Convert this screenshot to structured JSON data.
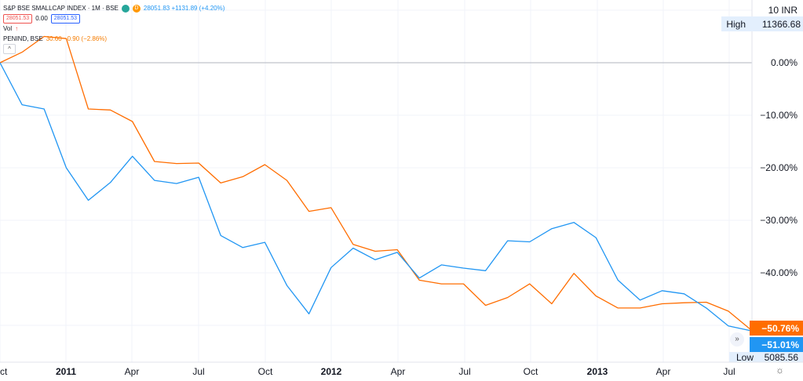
{
  "legend": {
    "title": "S&P BSE SMALLCAP INDEX · 1M · BSE",
    "badge1": "D",
    "change": "28051.83 +1131.89 (+4.20%)",
    "bid": "28051.53",
    "spread": "0.00",
    "ask": "28051.53",
    "vol_label": "Vol",
    "vol_icon": "arrow-up-icon",
    "compare": "PENIND, BSE",
    "compare_change": "30.60 −0.90 (−2.86%)",
    "collapse_icon": "chevron-up-icon"
  },
  "header_right": {
    "currency": "10 INR",
    "high_label": "High",
    "high_value": "11366.68",
    "low_label": "Low",
    "low_value": "5085.56"
  },
  "colors": {
    "blue": "#2196f3",
    "orange": "#ff6d00",
    "grid": "#f0f3fa",
    "zero_line": "#b2b5be"
  },
  "chart_data": {
    "type": "line",
    "x_labels": [
      "Oct",
      "2011",
      "Apr",
      "Jul",
      "Oct",
      "2012",
      "Apr",
      "Jul",
      "Oct",
      "2013",
      "Apr",
      "Jul"
    ],
    "y_ticks": [
      "0.00%",
      "−10.00%",
      "−20.00%",
      "−30.00%",
      "−40.00%"
    ],
    "ylim": [
      -56,
      12
    ],
    "series": [
      {
        "name": "S&P BSE SMALLCAP INDEX",
        "color": "#2196f3",
        "last_label": "−51.01%",
        "values": [
          0,
          -8,
          -8.8,
          -20,
          -26.2,
          -22.8,
          -17.8,
          -22.4,
          -23,
          -21.8,
          -32.9,
          -35.2,
          -34.2,
          -42.4,
          -47.8,
          -39,
          -35.3,
          -37.5,
          -36.1,
          -41,
          -38.5,
          -39.1,
          -39.6,
          -33.9,
          -34.1,
          -31.6,
          -30.4,
          -33.3,
          -41.4,
          -45.2,
          -43.4,
          -44,
          -46.7,
          -50.1,
          -51.01
        ]
      },
      {
        "name": "PENIND, BSE",
        "color": "#ff6d00",
        "last_label": "−50.76%",
        "values": [
          0,
          2,
          5,
          4.6,
          -8.8,
          -9,
          -11.2,
          -18.8,
          -19.2,
          -19.1,
          -22.9,
          -21.7,
          -19.4,
          -22.4,
          -28.3,
          -27.6,
          -34.6,
          -35.9,
          -35.6,
          -41.4,
          -42.1,
          -42.1,
          -46.2,
          -44.7,
          -42.1,
          -45.9,
          -40.1,
          -44.4,
          -46.7,
          -46.7,
          -45.9,
          -45.7,
          -45.6,
          -47.3,
          -50.76
        ]
      }
    ]
  }
}
